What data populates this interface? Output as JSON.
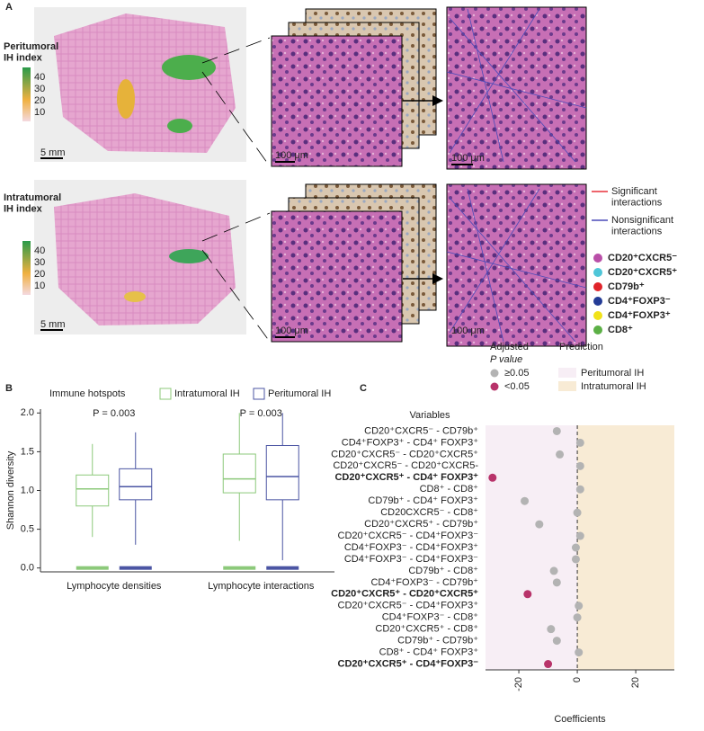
{
  "panel_labels": [
    "A",
    "B",
    "C"
  ],
  "panel_a": {
    "row_titles": [
      "Peritumoral\nIH index",
      "Intratumoral\nIH index"
    ],
    "colorbar_ticks": [
      "40",
      "30",
      "20",
      "10"
    ],
    "scale_bars": [
      "5 mm",
      "100 μm",
      "100 μm"
    ],
    "interaction_legend": [
      {
        "label": "Significant\ninteractions",
        "color": "#e8323c"
      },
      {
        "label": "Nonsignificant\ninteractions",
        "color": "#4a4ab8"
      }
    ],
    "cell_types": [
      {
        "label": "CD20⁺CXCR5⁻",
        "color": "#b94fa8"
      },
      {
        "label": "CD20⁺CXCR5⁺",
        "color": "#4fc6d8"
      },
      {
        "label": "CD79b⁺",
        "color": "#e0242a"
      },
      {
        "label": "CD4⁺FOXP3⁻",
        "color": "#243c96"
      },
      {
        "label": "CD4⁺FOXP3⁺",
        "color": "#f1e21a"
      },
      {
        "label": "CD8⁺",
        "color": "#5cb046"
      }
    ]
  },
  "chart_data": [
    {
      "type": "box",
      "y_label": "Shannon diversity",
      "legend_title": "Immune hotspots",
      "categories": [
        "Lymphocyte densities",
        "Lymphocyte interactions"
      ],
      "annotations": [
        "P = 0.003",
        "P = 0.003"
      ],
      "series": [
        {
          "name": "Intratumoral IH",
          "color": "#8cc97a",
          "boxes": [
            {
              "low": 0.4,
              "q1": 0.8,
              "median": 1.02,
              "q3": 1.2,
              "high": 1.6
            },
            {
              "low": 0.35,
              "q1": 0.97,
              "median": 1.15,
              "q3": 1.47,
              "high": 2.0
            }
          ],
          "outliers": [
            [
              0
            ],
            [
              0
            ]
          ]
        },
        {
          "name": "Peritumoral IH",
          "color": "#4b55a3",
          "boxes": [
            {
              "low": 0.3,
              "q1": 0.88,
              "median": 1.05,
              "q3": 1.28,
              "high": 1.75
            },
            {
              "low": 0.1,
              "q1": 0.88,
              "median": 1.18,
              "q3": 1.58,
              "high": 2.0
            }
          ],
          "outliers": [
            [
              0
            ],
            [
              0
            ]
          ]
        }
      ],
      "ylim": [
        -0.05,
        2.05
      ],
      "yticks": [
        {
          "value": 0,
          "label": "0.0"
        },
        {
          "value": 0.5,
          "label": "0.5"
        },
        {
          "value": 1,
          "label": "1.0"
        },
        {
          "value": 1.5,
          "label": "1.5"
        },
        {
          "value": 2,
          "label": "2.0"
        }
      ]
    },
    {
      "type": "dot",
      "y_header": "Variables",
      "x_label": "Coefficients",
      "categories": [
        "CD20⁺CXCR5⁻ - CD79b⁺",
        "CD4⁺FOXP3⁺ - CD4⁺ FOXP3⁺",
        "CD20⁺CXCR5⁻ - CD20⁺CXCR5⁺",
        "CD20⁺CXCR5⁻ - CD20⁺CXCR5-",
        "CD20⁺CXCR5⁺ - CD4⁺ FOXP3⁺",
        "CD8⁺ - CD8⁺",
        "CD79b⁺ - CD4⁺ FOXP3⁺",
        "CD20CXCR5⁻ - CD8⁺",
        "CD20⁺CXCR5⁺ - CD79b⁺",
        "CD20⁺CXCR5⁻ - CD4⁺FOXP3⁻",
        "CD4⁺FOXP3⁻ - CD4⁺FOXP3⁺",
        "CD4⁺FOXP3⁻ - CD4⁺FOXP3⁻",
        "CD79b⁺ - CD8⁺",
        "CD4⁺FOXP3⁻ - CD79b⁺",
        "CD20⁺CXCR5⁺ - CD20⁺CXCR5⁺",
        "CD20⁺CXCR5⁻ - CD4⁺FOXP3⁺",
        "CD4⁺FOXP3⁻ - CD8⁺",
        "CD20⁺CXCR5⁺ - CD8⁺",
        "CD79b⁺ - CD79b⁺",
        "CD8⁺ - CD4⁺ FOXP3⁺",
        "CD20⁺CXCR5⁺ - CD4⁺FOXP3⁻"
      ],
      "values": [
        -7,
        1,
        -6,
        1,
        -29,
        1,
        -18,
        0,
        -13,
        1,
        -0.5,
        -0.5,
        -8,
        -7,
        -17,
        0.5,
        0,
        -9,
        -7,
        0.5,
        -10
      ],
      "significant": [
        false,
        false,
        false,
        false,
        true,
        false,
        false,
        false,
        false,
        false,
        false,
        false,
        false,
        false,
        true,
        false,
        false,
        false,
        false,
        false,
        true
      ],
      "bold": [
        4,
        14,
        20
      ],
      "color_legend_title": [
        "Adjusted",
        "P value"
      ],
      "color_legend": [
        {
          "label": "≥0.05",
          "color": "#b3b3b3"
        },
        {
          "label": "<0.05",
          "color": "#b8336a"
        }
      ],
      "region_legend_title": "Prediction",
      "regions": [
        {
          "label": "Peritumoral IH",
          "color": "#f7eef5"
        },
        {
          "label": "Intratumoral IH",
          "color": "#f8ebd5"
        }
      ],
      "xlim": [
        -31.4,
        33.2
      ],
      "xticks": [
        -20,
        0,
        20
      ]
    }
  ]
}
